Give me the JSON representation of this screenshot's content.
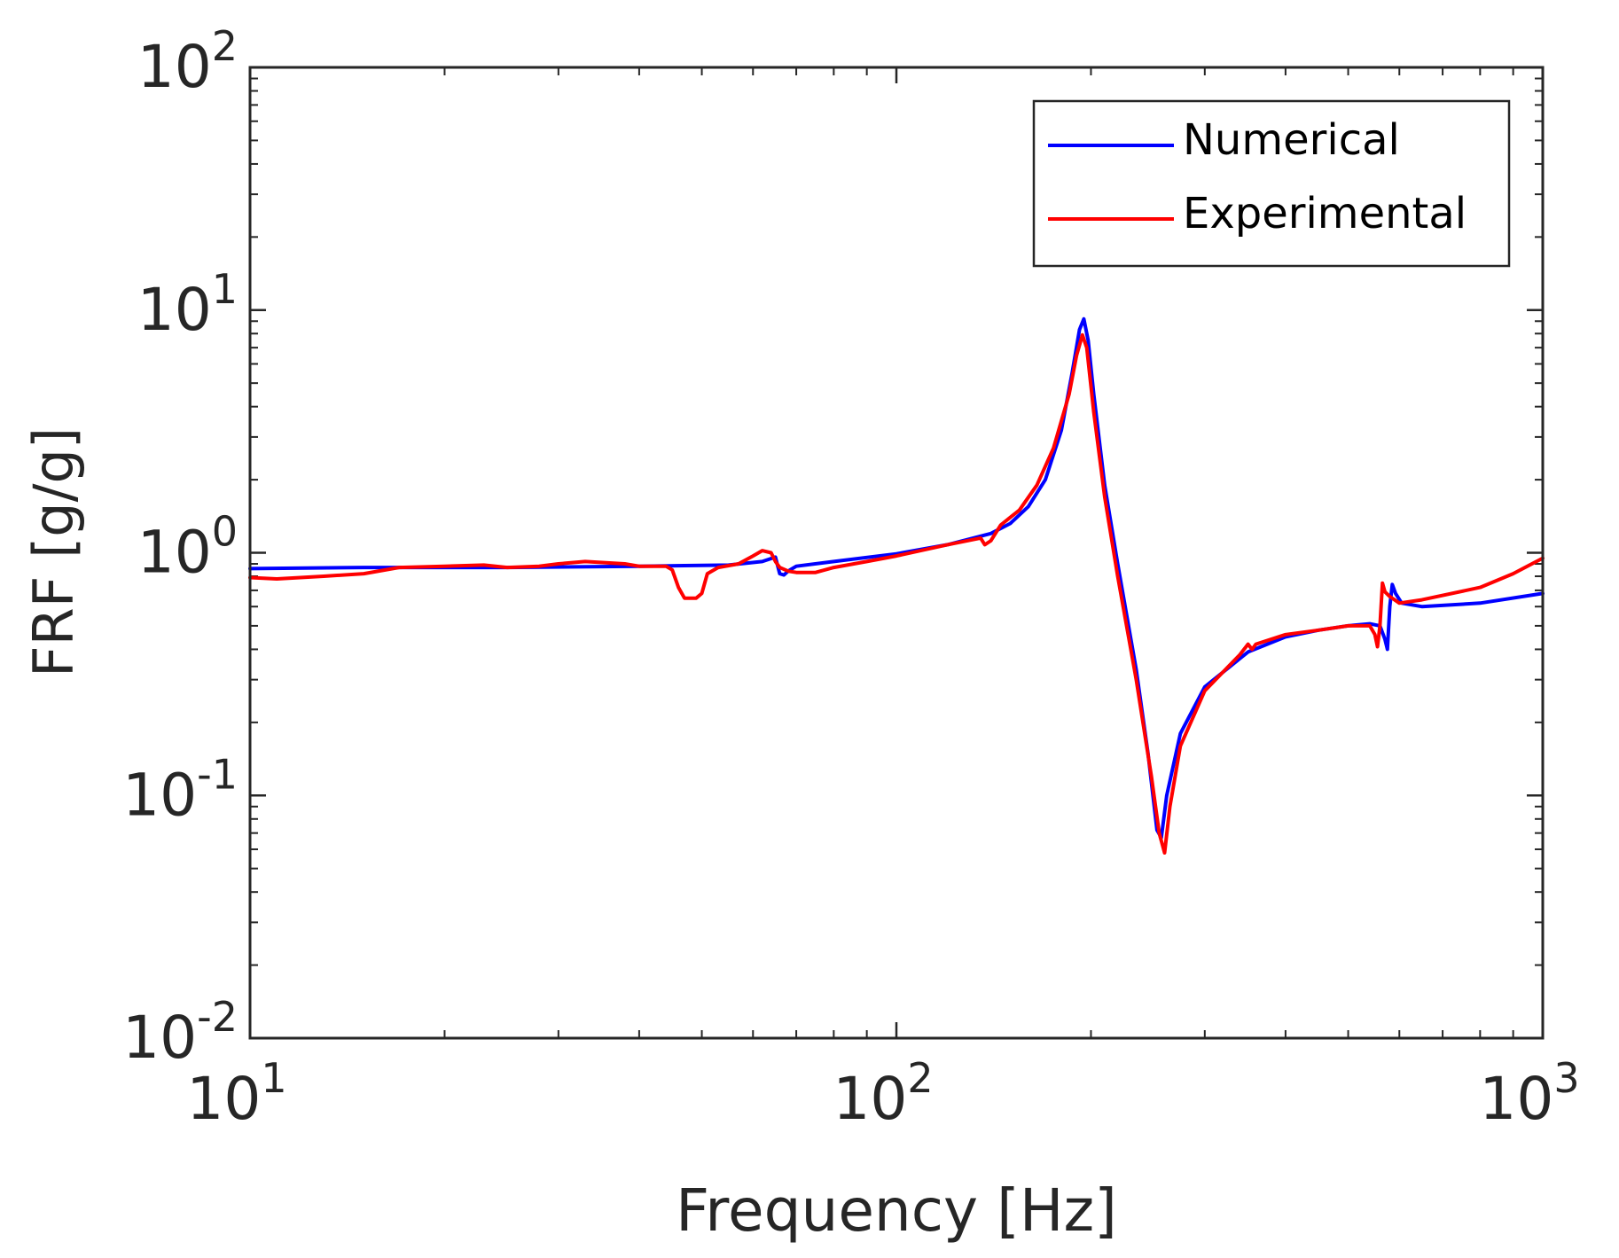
{
  "chart_data": {
    "type": "line",
    "xscale": "log",
    "yscale": "log",
    "xlabel": "Frequency [Hz]",
    "ylabel": "FRF [g/g]",
    "xlim": [
      10,
      1000
    ],
    "ylim": [
      0.01,
      100
    ],
    "x_ticks": [
      {
        "base": "10",
        "exp": "1",
        "value": 10
      },
      {
        "base": "10",
        "exp": "2",
        "value": 100
      },
      {
        "base": "10",
        "exp": "3",
        "value": 1000
      }
    ],
    "y_ticks": [
      {
        "base": "10",
        "exp": "-2",
        "value": 0.01
      },
      {
        "base": "10",
        "exp": "-1",
        "value": 0.1
      },
      {
        "base": "10",
        "exp": "0",
        "value": 1
      },
      {
        "base": "10",
        "exp": "1",
        "value": 10
      },
      {
        "base": "10",
        "exp": "2",
        "value": 100
      }
    ],
    "legend": {
      "placement": "top-right"
    },
    "series": [
      {
        "name": "Numerical",
        "color": "#0000ff",
        "points": [
          [
            10,
            0.86
          ],
          [
            15,
            0.87
          ],
          [
            25,
            0.87
          ],
          [
            40,
            0.88
          ],
          [
            55,
            0.89
          ],
          [
            62,
            0.92
          ],
          [
            65,
            0.96
          ],
          [
            66,
            0.82
          ],
          [
            67,
            0.81
          ],
          [
            68,
            0.84
          ],
          [
            70,
            0.88
          ],
          [
            80,
            0.92
          ],
          [
            100,
            0.99
          ],
          [
            120,
            1.08
          ],
          [
            140,
            1.2
          ],
          [
            150,
            1.32
          ],
          [
            160,
            1.55
          ],
          [
            170,
            2.0
          ],
          [
            180,
            3.2
          ],
          [
            187,
            5.5
          ],
          [
            192,
            8.3
          ],
          [
            195,
            9.2
          ],
          [
            198,
            7.5
          ],
          [
            202,
            4.5
          ],
          [
            210,
            1.9
          ],
          [
            220,
            0.9
          ],
          [
            235,
            0.33
          ],
          [
            245,
            0.15
          ],
          [
            253,
            0.072
          ],
          [
            257,
            0.067
          ],
          [
            262,
            0.1
          ],
          [
            275,
            0.18
          ],
          [
            300,
            0.28
          ],
          [
            350,
            0.39
          ],
          [
            400,
            0.45
          ],
          [
            450,
            0.48
          ],
          [
            500,
            0.5
          ],
          [
            540,
            0.51
          ],
          [
            560,
            0.5
          ],
          [
            570,
            0.44
          ],
          [
            575,
            0.4
          ],
          [
            580,
            0.6
          ],
          [
            585,
            0.74
          ],
          [
            592,
            0.68
          ],
          [
            605,
            0.62
          ],
          [
            650,
            0.6
          ],
          [
            800,
            0.62
          ],
          [
            1000,
            0.68
          ]
        ]
      },
      {
        "name": "Experimental",
        "color": "#ff0000",
        "points": [
          [
            10,
            0.79
          ],
          [
            11,
            0.78
          ],
          [
            13,
            0.8
          ],
          [
            15,
            0.82
          ],
          [
            17,
            0.87
          ],
          [
            20,
            0.88
          ],
          [
            23,
            0.89
          ],
          [
            25,
            0.87
          ],
          [
            28,
            0.88
          ],
          [
            30,
            0.9
          ],
          [
            33,
            0.92
          ],
          [
            38,
            0.9
          ],
          [
            40,
            0.88
          ],
          [
            44,
            0.88
          ],
          [
            45,
            0.85
          ],
          [
            46,
            0.72
          ],
          [
            47,
            0.65
          ],
          [
            49,
            0.65
          ],
          [
            50,
            0.68
          ],
          [
            51,
            0.82
          ],
          [
            53,
            0.87
          ],
          [
            57,
            0.9
          ],
          [
            60,
            0.97
          ],
          [
            62,
            1.02
          ],
          [
            64,
            1.0
          ],
          [
            65,
            0.92
          ],
          [
            66,
            0.87
          ],
          [
            68,
            0.84
          ],
          [
            70,
            0.83
          ],
          [
            75,
            0.83
          ],
          [
            80,
            0.87
          ],
          [
            90,
            0.92
          ],
          [
            100,
            0.97
          ],
          [
            120,
            1.08
          ],
          [
            135,
            1.15
          ],
          [
            137,
            1.08
          ],
          [
            140,
            1.12
          ],
          [
            145,
            1.3
          ],
          [
            155,
            1.5
          ],
          [
            165,
            1.9
          ],
          [
            175,
            2.7
          ],
          [
            185,
            4.5
          ],
          [
            190,
            6.5
          ],
          [
            194,
            7.9
          ],
          [
            197,
            7.0
          ],
          [
            202,
            3.8
          ],
          [
            210,
            1.7
          ],
          [
            220,
            0.8
          ],
          [
            235,
            0.3
          ],
          [
            248,
            0.12
          ],
          [
            255,
            0.07
          ],
          [
            260,
            0.058
          ],
          [
            265,
            0.09
          ],
          [
            275,
            0.16
          ],
          [
            300,
            0.27
          ],
          [
            340,
            0.38
          ],
          [
            350,
            0.42
          ],
          [
            355,
            0.4
          ],
          [
            360,
            0.42
          ],
          [
            400,
            0.46
          ],
          [
            450,
            0.48
          ],
          [
            500,
            0.5
          ],
          [
            540,
            0.5
          ],
          [
            550,
            0.46
          ],
          [
            555,
            0.41
          ],
          [
            560,
            0.5
          ],
          [
            565,
            0.75
          ],
          [
            570,
            0.69
          ],
          [
            580,
            0.66
          ],
          [
            600,
            0.62
          ],
          [
            650,
            0.64
          ],
          [
            800,
            0.72
          ],
          [
            900,
            0.82
          ],
          [
            1000,
            0.95
          ]
        ]
      }
    ]
  }
}
